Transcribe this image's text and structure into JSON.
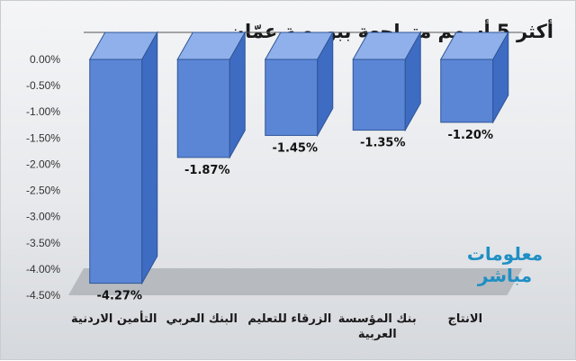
{
  "chart_data": {
    "type": "bar",
    "title": "أكثر 5 أسهم متراجعة ببورصة عمّان",
    "categories": [
      "التأمين الاردنية",
      "البنك العربي",
      "الزرقاء للتعليم",
      "بنك المؤسسة العربية",
      "الانتاج"
    ],
    "values": [
      -4.27,
      -1.87,
      -1.45,
      -1.35,
      -1.2
    ],
    "value_labels": [
      "-4.27%",
      "-1.87%",
      "-1.45%",
      "-1.35%",
      "-1.20%"
    ],
    "ylim": [
      -4.5,
      0
    ],
    "yticks": [
      "0.00%",
      "-0.50%",
      "-1.00%",
      "-1.50%",
      "-2.00%",
      "-2.50%",
      "-3.00%",
      "-3.50%",
      "-4.00%",
      "-4.50%"
    ],
    "xlabel": "",
    "ylabel": "",
    "grid": false,
    "bar_color": "#5b86d6"
  },
  "logo": {
    "line1": "معلومات",
    "line2": "مباشر"
  }
}
